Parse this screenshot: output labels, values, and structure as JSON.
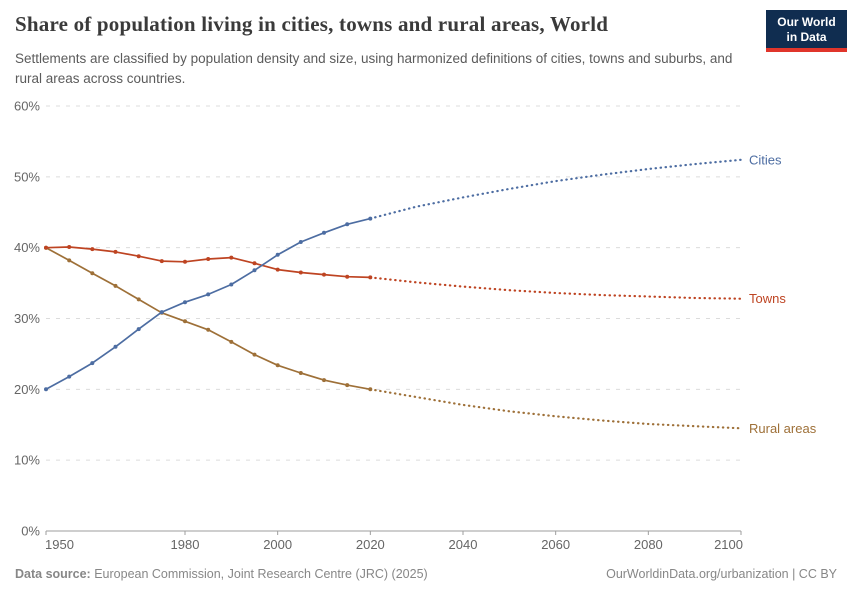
{
  "header": {
    "title": "Share of population living in cities, towns and rural areas, World",
    "subtitle": "Settlements are classified by population density and size, using harmonized definitions of cities, towns and suburbs, and rural areas across countries.",
    "logo": {
      "line1": "Our World",
      "line2": "in Data",
      "bg_color": "#102D50",
      "bar_color": "#E0352B",
      "text_color": "#FFFFFF"
    }
  },
  "chart_data": {
    "type": "line",
    "title": "Share of population living in cities, towns and rural areas, World",
    "xlabel": "",
    "ylabel": "",
    "xlim": [
      1950,
      2100
    ],
    "ylim": [
      0,
      60
    ],
    "xticks": [
      1950,
      1980,
      2000,
      2020,
      2040,
      2060,
      2080,
      2100
    ],
    "yticks": [
      0,
      10,
      20,
      30,
      40,
      50,
      60
    ],
    "ytick_labels": [
      "0%",
      "10%",
      "20%",
      "30%",
      "40%",
      "50%",
      "60%"
    ],
    "grid": "horizontal-dashed",
    "legend_position": "right-edge-labels",
    "style_note": "solid lines with point markers = historical (1950-2020); dotted lines = projections (2020-2100)",
    "colors": {
      "grid": "#dcdcdc",
      "axis": "#9e9e9e",
      "tick_text": "#666666"
    },
    "series": [
      {
        "name": "Rural areas",
        "color": "#9E7038",
        "historical": {
          "years": [
            1950,
            1955,
            1960,
            1965,
            1970,
            1975,
            1980,
            1985,
            1990,
            1995,
            2000,
            2005,
            2010,
            2015,
            2020
          ],
          "values": [
            40.0,
            38.2,
            36.4,
            34.6,
            32.7,
            30.8,
            29.6,
            28.4,
            26.7,
            24.9,
            23.4,
            22.3,
            21.3,
            20.6,
            20.0
          ]
        },
        "projection": {
          "years": [
            2020,
            2030,
            2040,
            2050,
            2060,
            2070,
            2080,
            2090,
            2100
          ],
          "values": [
            20.0,
            18.9,
            17.8,
            16.9,
            16.2,
            15.6,
            15.1,
            14.8,
            14.5
          ]
        }
      },
      {
        "name": "Towns",
        "color": "#BE4422",
        "historical": {
          "years": [
            1950,
            1955,
            1960,
            1965,
            1970,
            1975,
            1980,
            1985,
            1990,
            1995,
            2000,
            2005,
            2010,
            2015,
            2020
          ],
          "values": [
            40.0,
            40.1,
            39.8,
            39.4,
            38.8,
            38.1,
            38.0,
            38.4,
            38.6,
            37.8,
            36.9,
            36.5,
            36.2,
            35.9,
            35.8
          ]
        },
        "projection": {
          "years": [
            2020,
            2030,
            2040,
            2050,
            2060,
            2070,
            2080,
            2090,
            2100
          ],
          "values": [
            35.8,
            35.1,
            34.5,
            34.0,
            33.6,
            33.3,
            33.1,
            32.9,
            32.8
          ]
        }
      },
      {
        "name": "Cities",
        "color": "#4D6DA2",
        "historical": {
          "years": [
            1950,
            1955,
            1960,
            1965,
            1970,
            1975,
            1980,
            1985,
            1990,
            1995,
            2000,
            2005,
            2010,
            2015,
            2020
          ],
          "values": [
            20.0,
            21.8,
            23.7,
            26.0,
            28.5,
            30.9,
            32.3,
            33.4,
            34.8,
            36.8,
            39.0,
            40.8,
            42.1,
            43.3,
            44.1
          ]
        },
        "projection": {
          "years": [
            2020,
            2030,
            2040,
            2050,
            2060,
            2070,
            2080,
            2090,
            2100
          ],
          "values": [
            44.1,
            45.8,
            47.1,
            48.3,
            49.4,
            50.3,
            51.1,
            51.8,
            52.4
          ]
        }
      }
    ]
  },
  "footer": {
    "data_source_label": "Data source:",
    "data_source_value": "European Commission, Joint Research Centre (JRC) (2025)",
    "attribution": "OurWorldinData.org/urbanization | CC BY"
  }
}
